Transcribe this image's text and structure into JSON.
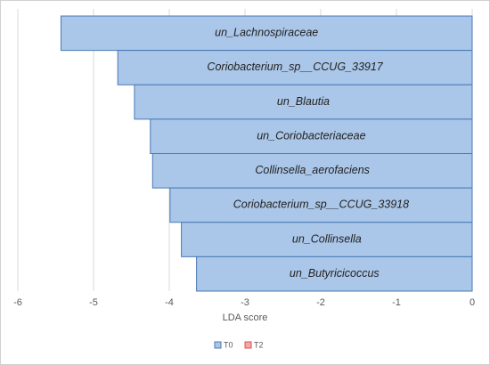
{
  "chart_data": {
    "type": "barh",
    "categories": [
      "un_Lachnospiraceae",
      "Coriobacterium_sp__CCUG_33917",
      "un_Blautia",
      "un_Coriobacteriaceae",
      "Collinsella_aerofaciens",
      "Coriobacterium_sp__CCUG_33918",
      "un_Collinsella",
      "un_Butyricicoccus"
    ],
    "series": [
      {
        "name": "T0",
        "color": "#aac6e8",
        "values": [
          -5.43,
          -4.68,
          -4.46,
          -4.25,
          -4.22,
          -3.99,
          -3.84,
          -3.64
        ]
      },
      {
        "name": "T2",
        "color": "#f2a9a9",
        "values": [
          null,
          null,
          null,
          null,
          null,
          null,
          null,
          null
        ]
      }
    ],
    "xlabel": "LDA score",
    "xlim": [
      -6,
      0
    ],
    "xticks": [
      -6,
      -5,
      -4,
      -3,
      -2,
      -1,
      0
    ],
    "grid": true,
    "legend": "bottom"
  }
}
